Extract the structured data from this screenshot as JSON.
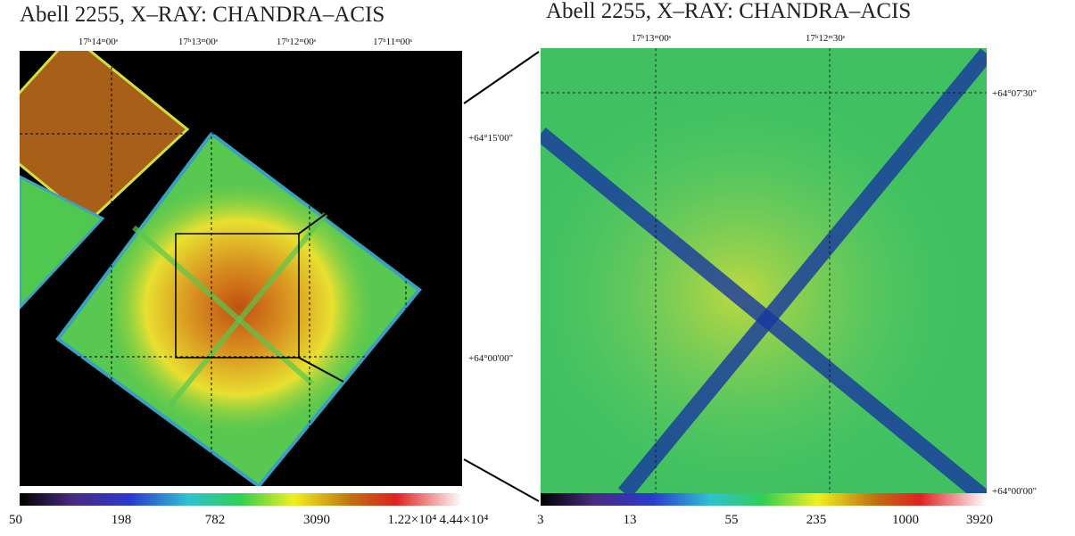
{
  "panels": [
    {
      "title": "Abell 2255, X–RAY: CHANDRA–ACIS",
      "ra_labels": [
        "17ʰ14ᵐ00ˢ",
        "17ʰ13ᵐ00ˢ",
        "17ʰ12ᵐ00ˢ",
        "17ʰ11ᵐ00ˢ"
      ],
      "dec_labels": [
        "+64°15'00\"",
        "+64°00'00\""
      ],
      "colorbar_labels": [
        "50",
        "198",
        "782",
        "3090",
        "1.22×10⁴",
        "4.44×10⁴"
      ]
    },
    {
      "title": "Abell 2255, X–RAY: CHANDRA–ACIS",
      "ra_labels": [
        "17ʰ13ᵐ00ˢ",
        "17ʰ12ᵐ30ˢ"
      ],
      "dec_labels": [
        "+64°07'30\"",
        "+64°00'00\""
      ],
      "colorbar_labels": [
        "3",
        "13",
        "55",
        "235",
        "1000",
        "3920"
      ]
    }
  ]
}
